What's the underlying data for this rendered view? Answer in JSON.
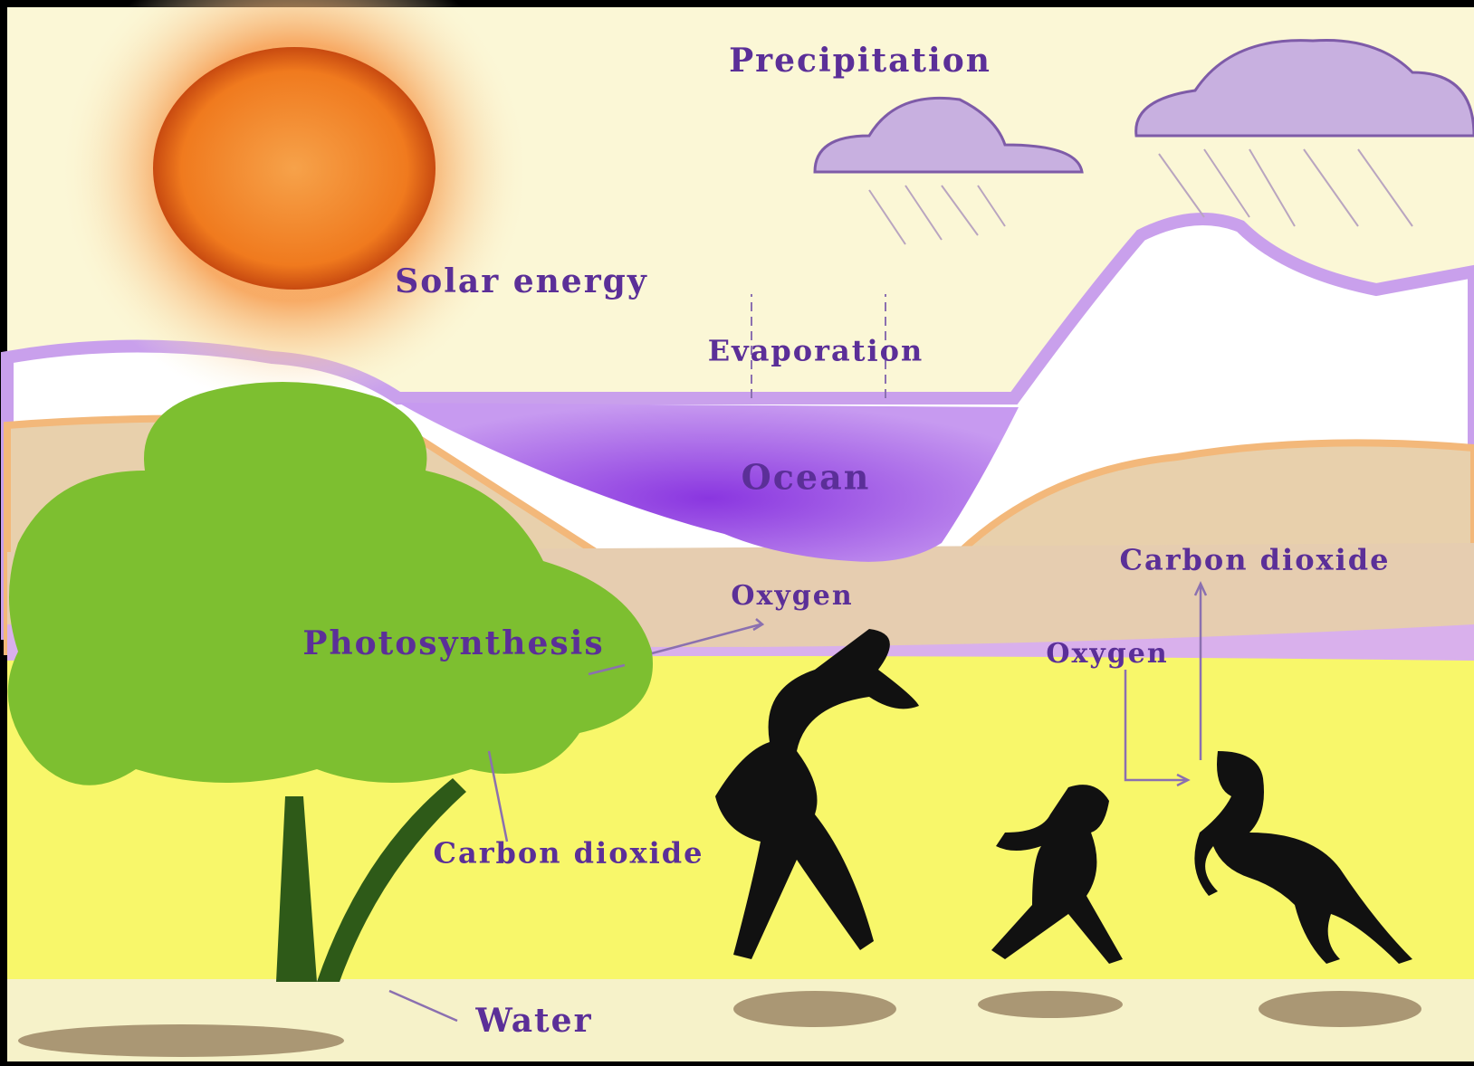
{
  "labels": [
    {
      "text": "Precipitation"
    },
    {
      "text": "Solar energy"
    },
    {
      "text": "Evaporation"
    },
    {
      "text": "Ocean"
    },
    {
      "text": "Oxygen"
    },
    {
      "text": "Photosynthesis"
    },
    {
      "text": "Carbon dioxide"
    },
    {
      "text": "Oxygen"
    },
    {
      "text": "Carbon dioxide"
    },
    {
      "text": "Water"
    }
  ]
}
